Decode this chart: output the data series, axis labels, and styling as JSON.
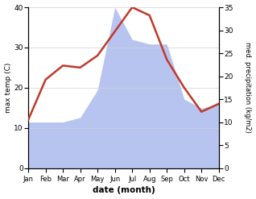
{
  "months": [
    "Jan",
    "Feb",
    "Mar",
    "Apr",
    "May",
    "Jun",
    "Jul",
    "Aug",
    "Sep",
    "Oct",
    "Nov",
    "Dec"
  ],
  "temp": [
    12,
    22,
    25.5,
    25,
    28,
    34,
    40,
    38,
    27,
    20,
    14,
    16
  ],
  "precip": [
    10,
    10,
    10,
    11,
    17,
    35,
    28,
    27,
    27,
    15,
    13,
    14
  ],
  "temp_color": "#c0392b",
  "precip_color": "#b8c4f0",
  "temp_ylim": [
    0,
    40
  ],
  "precip_ylim": [
    0,
    35
  ],
  "temp_yticks": [
    0,
    10,
    20,
    30,
    40
  ],
  "precip_yticks": [
    0,
    5,
    10,
    15,
    20,
    25,
    30,
    35
  ],
  "xlabel": "date (month)",
  "ylabel_left": "max temp (C)",
  "ylabel_right": "med. precipitation (kg/m2)",
  "temp_linewidth": 1.8,
  "bg_color": "#ffffff"
}
